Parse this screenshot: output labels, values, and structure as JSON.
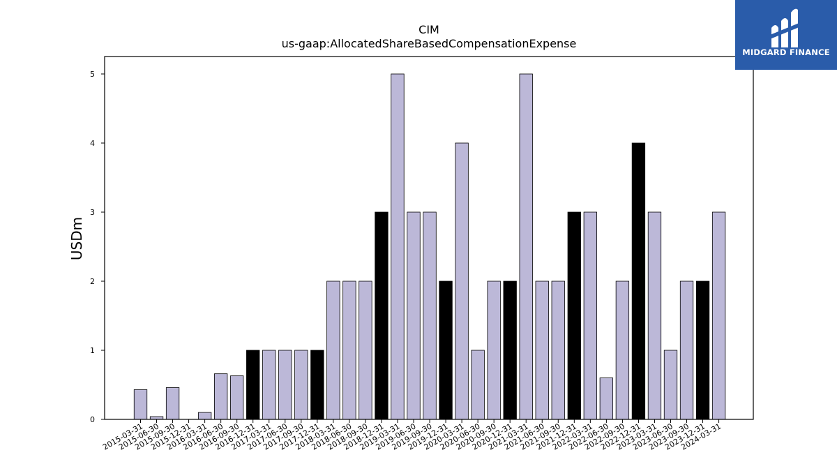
{
  "chart_data": {
    "type": "bar",
    "title": "CIM",
    "subtitle": "us-gaap:AllocatedShareBasedCompensationExpense",
    "xlabel": "",
    "ylabel": "USDm",
    "ylim": [
      0,
      5.25
    ],
    "yticks": [
      0,
      1,
      2,
      3,
      4,
      5
    ],
    "grid": false,
    "categories": [
      "2015-03-31",
      "2015-06-30",
      "2015-09-30",
      "2015-12-31",
      "2016-03-31",
      "2016-06-30",
      "2016-09-30",
      "2016-12-31",
      "2017-03-31",
      "2017-06-30",
      "2017-09-30",
      "2017-12-31",
      "2018-03-31",
      "2018-06-30",
      "2018-09-30",
      "2018-12-31",
      "2019-03-31",
      "2019-06-30",
      "2019-09-30",
      "2019-12-31",
      "2020-03-31",
      "2020-06-30",
      "2020-09-30",
      "2020-12-31",
      "2021-03-31",
      "2021-06-30",
      "2021-09-30",
      "2021-12-31",
      "2022-03-31",
      "2022-06-30",
      "2022-09-30",
      "2022-12-31",
      "2023-03-31",
      "2023-06-30",
      "2023-09-30",
      "2023-12-31",
      "2024-03-31"
    ],
    "values": [
      0.43,
      0.04,
      0.46,
      0,
      0.1,
      0.66,
      0.63,
      1,
      1,
      1,
      1,
      1,
      2,
      2,
      2,
      3,
      5,
      3,
      3,
      2,
      4,
      1,
      2,
      2,
      5,
      2,
      2,
      3,
      3,
      0.6,
      2,
      4,
      3,
      1,
      2,
      2,
      3
    ],
    "colors": {
      "quarter": "#bcb8d8",
      "year_end": "#000000",
      "edge": "#000000"
    }
  },
  "logo": {
    "text": "MIDGARD FINANCE",
    "background": "#2a5caa"
  }
}
